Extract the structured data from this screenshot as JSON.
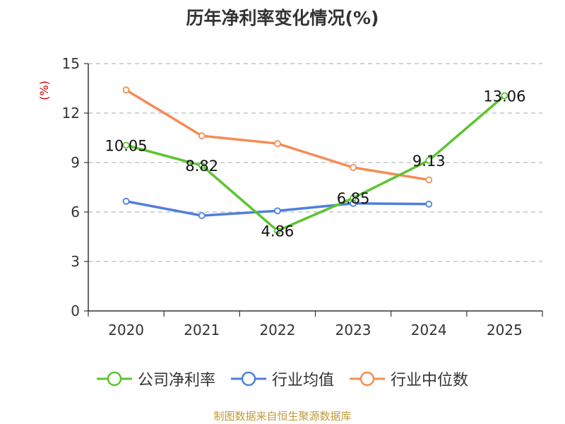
{
  "chart_data": {
    "type": "line",
    "title": "历年净利率变化情况(%)",
    "ylabel": "(%)",
    "xlabel": "",
    "categories": [
      "2020",
      "2021",
      "2022",
      "2023",
      "2024",
      "2025"
    ],
    "ylim": [
      0,
      15
    ],
    "yticks": [
      0,
      3,
      6,
      9,
      12,
      15
    ],
    "grid": true,
    "legend_position": "bottom",
    "series": [
      {
        "name": "公司净利率",
        "color": "#5cc431",
        "values": [
          10.05,
          8.82,
          4.86,
          6.85,
          9.13,
          13.06
        ],
        "labels": [
          "10.05",
          "8.82",
          "4.86",
          "6.85",
          "9.13",
          "13.06"
        ]
      },
      {
        "name": "行业均值",
        "color": "#4f7fdb",
        "values": [
          6.65,
          5.78,
          6.07,
          6.52,
          6.48,
          null
        ]
      },
      {
        "name": "行业中位数",
        "color": "#f68c55",
        "values": [
          13.4,
          10.62,
          10.15,
          8.7,
          7.95,
          null
        ]
      }
    ]
  },
  "source": "制图数据来自恒生聚源数据库"
}
